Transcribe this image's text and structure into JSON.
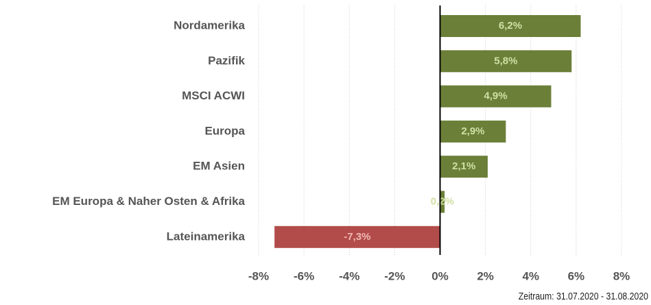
{
  "chart_data": {
    "type": "barh",
    "categories": [
      "Nordamerika",
      "Pazifik",
      "MSCI ACWI",
      "Europa",
      "EM Asien",
      "EM Europa & Naher Osten & Afrika",
      "Lateinamerika"
    ],
    "values": [
      6.2,
      5.8,
      4.9,
      2.9,
      2.1,
      0.2,
      -7.3
    ],
    "value_labels": [
      "6,2%",
      "5,8%",
      "4,9%",
      "2,9%",
      "2,1%",
      "0,2%",
      "-7,3%"
    ],
    "colors": [
      "#6b7f38",
      "#6b7f38",
      "#6b7f38",
      "#6b7f38",
      "#6b7f38",
      "#6b7f38",
      "#b24c4a"
    ],
    "label_colors": [
      "#cfe0a4",
      "#cfe0a4",
      "#cfe0a4",
      "#cfe0a4",
      "#cfe0a4",
      "#cfe0a4",
      "#f0b8b4"
    ],
    "xlim": [
      -8,
      8
    ],
    "xticks": [
      {
        "value": -8,
        "label": "-8%"
      },
      {
        "value": -6,
        "label": "-6%"
      },
      {
        "value": -4,
        "label": "-4%"
      },
      {
        "value": -2,
        "label": "-2%"
      },
      {
        "value": 0,
        "label": "0%"
      },
      {
        "value": 2,
        "label": "2%"
      },
      {
        "value": 4,
        "label": "4%"
      },
      {
        "value": 6,
        "label": "6%"
      },
      {
        "value": 8,
        "label": "8%"
      }
    ],
    "grid": true,
    "footnote": "Zeitraum: 31.07.2020 - 31.08.2020"
  }
}
